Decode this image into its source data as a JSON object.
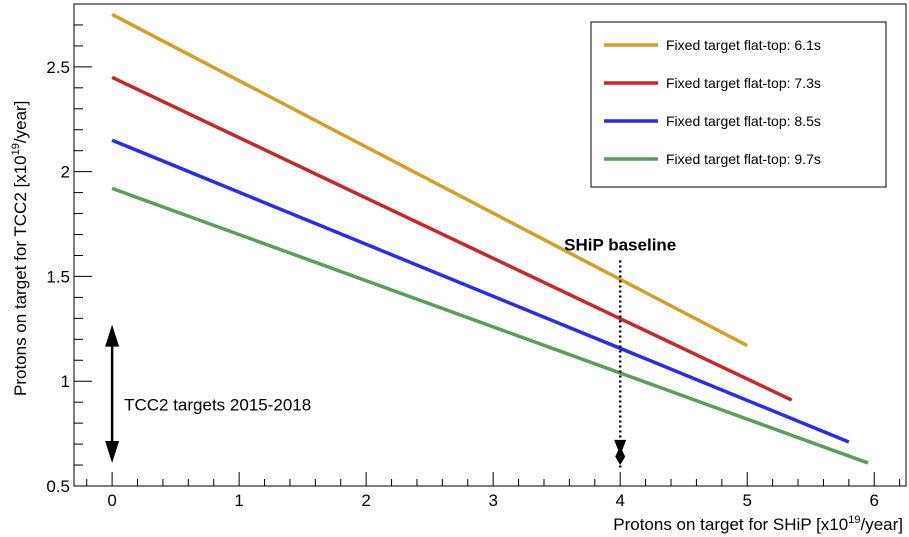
{
  "chart_data": {
    "type": "line",
    "xlabel_main": "Protons on target for SHiP [x10",
    "xlabel_sup": "19",
    "xlabel_tail": "/year]",
    "ylabel_main": "Protons on target for TCC2 [x10",
    "ylabel_sup": "19",
    "ylabel_tail": "/year]",
    "xlim": [
      -0.3,
      6.25
    ],
    "ylim": [
      0.5,
      2.8
    ],
    "x_ticks": [
      0,
      1,
      2,
      3,
      4,
      5,
      6
    ],
    "x_tick_labels": [
      "0",
      "1",
      "2",
      "3",
      "4",
      "5",
      "6"
    ],
    "y_ticks": [
      0.5,
      1,
      1.5,
      2,
      2.5
    ],
    "y_tick_labels": [
      "0.5",
      "1",
      "1.5",
      "2",
      "2.5"
    ],
    "legend_position": "top-right",
    "series": [
      {
        "name": "Fixed target flat-top: 6.1s",
        "color": "#d4a02a",
        "x": [
          0,
          5.0
        ],
        "y": [
          2.75,
          1.17
        ]
      },
      {
        "name": "Fixed target flat-top: 7.3s",
        "color": "#c8282a",
        "x": [
          0,
          5.35
        ],
        "y": [
          2.45,
          0.91
        ]
      },
      {
        "name": "Fixed target flat-top: 8.5s",
        "color": "#2b2bf0",
        "x": [
          0,
          5.8
        ],
        "y": [
          2.15,
          0.71
        ]
      },
      {
        "name": "Fixed target flat-top: 9.7s",
        "color": "#5e9c5e",
        "x": [
          0,
          5.95
        ],
        "y": [
          1.92,
          0.61
        ]
      }
    ],
    "annotations": {
      "baseline_label": "SHiP baseline",
      "baseline_x": 4,
      "baseline_y_top": 1.7,
      "baseline_y_bottom": 0.6,
      "tcc2_label": "TCC2 targets 2015-2018",
      "tcc2_x": 0,
      "tcc2_y_top": 1.27,
      "tcc2_y_bottom": 0.61
    }
  }
}
